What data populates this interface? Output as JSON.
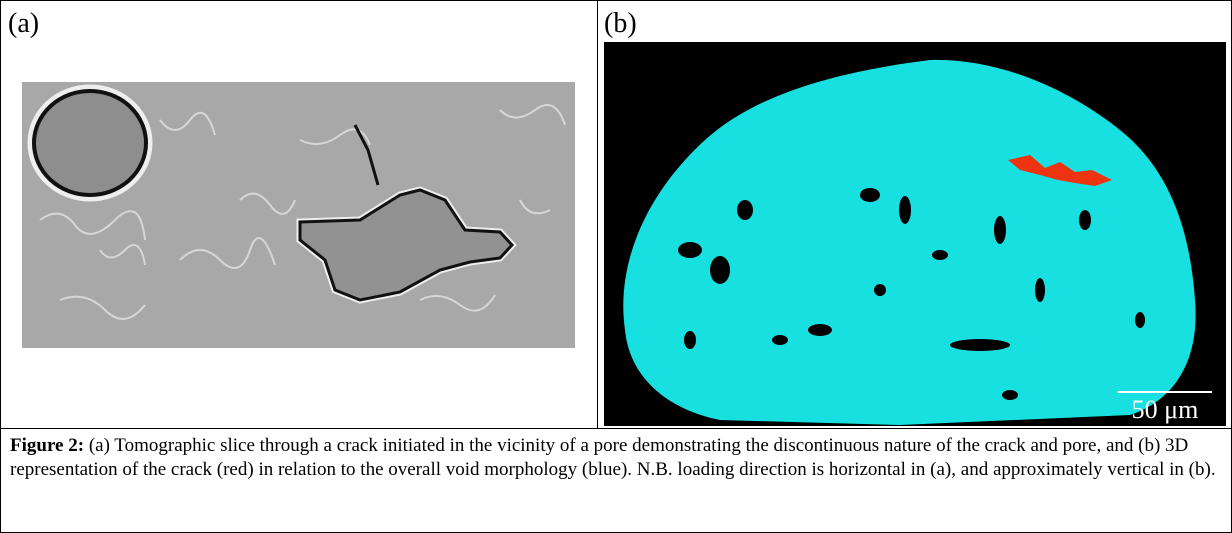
{
  "panels": [
    {
      "label": "(a)"
    },
    {
      "label": "(b)",
      "scale_bar": "50 μm"
    }
  ],
  "caption": {
    "label": "Figure 2:",
    "text": "(a) Tomographic slice through a crack initiated in the vicinity of a pore demonstrating the discontinuous nature of the crack and pore, and (b) 3D representation of the crack (red) in relation to the overall void morphology (blue).  N.B. loading direction is horizontal in (a), and approximately vertical in (b)."
  }
}
